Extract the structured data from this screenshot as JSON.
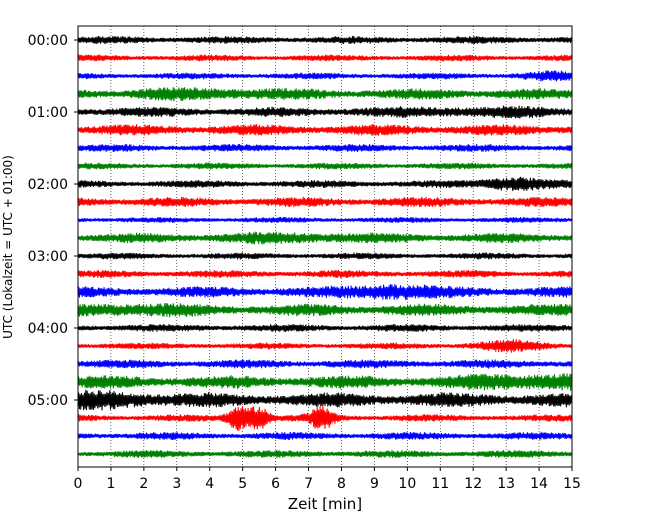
{
  "chart_data": {
    "type": "line",
    "chart_kind": "helicorder",
    "xlabel": "Zeit  [min]",
    "ylabel": "UTC (Lokalzeit = UTC + 01:00)",
    "xlim": [
      0,
      15
    ],
    "x_ticks": [
      "0",
      "1",
      "2",
      "3",
      "4",
      "5",
      "6",
      "7",
      "8",
      "9",
      "10",
      "11",
      "12",
      "13",
      "14",
      "15"
    ],
    "y_tick_labels": [
      "00:00",
      "01:00",
      "02:00",
      "03:00",
      "04:00",
      "05:00"
    ],
    "minutes_per_trace": 15,
    "vertical_grid": "dotted, every 1 min",
    "trace_color_cycle": [
      "#000000",
      "#ff0000",
      "#0000ff",
      "#008000"
    ],
    "traces": [
      {
        "row": 0,
        "start": "00:00",
        "amplitude": 0.3,
        "bursts": []
      },
      {
        "row": 1,
        "start": "00:15",
        "amplitude": 0.25,
        "bursts": []
      },
      {
        "row": 2,
        "start": "00:30",
        "amplitude": 0.25,
        "bursts": [
          {
            "t": 14.3,
            "w": 0.8,
            "a": 0.2
          }
        ]
      },
      {
        "row": 3,
        "start": "00:45",
        "amplitude": 0.45,
        "bursts": [
          {
            "t": 4.0,
            "w": 2.0,
            "a": 0.15
          }
        ]
      },
      {
        "row": 4,
        "start": "01:00",
        "amplitude": 0.4,
        "bursts": [
          {
            "t": 12.0,
            "w": 2.5,
            "a": 0.15
          }
        ]
      },
      {
        "row": 5,
        "start": "01:15",
        "amplitude": 0.45,
        "bursts": []
      },
      {
        "row": 6,
        "start": "01:30",
        "amplitude": 0.3,
        "bursts": []
      },
      {
        "row": 7,
        "start": "01:45",
        "amplitude": 0.25,
        "bursts": []
      },
      {
        "row": 8,
        "start": "02:00",
        "amplitude": 0.3,
        "bursts": [
          {
            "t": 13.2,
            "w": 1.0,
            "a": 0.4
          }
        ]
      },
      {
        "row": 9,
        "start": "02:15",
        "amplitude": 0.4,
        "bursts": []
      },
      {
        "row": 10,
        "start": "02:30",
        "amplitude": 0.22,
        "bursts": []
      },
      {
        "row": 11,
        "start": "02:45",
        "amplitude": 0.4,
        "bursts": [
          {
            "t": 6.5,
            "w": 2.0,
            "a": 0.15
          }
        ]
      },
      {
        "row": 12,
        "start": "03:00",
        "amplitude": 0.25,
        "bursts": []
      },
      {
        "row": 13,
        "start": "03:15",
        "amplitude": 0.3,
        "bursts": []
      },
      {
        "row": 14,
        "start": "03:30",
        "amplitude": 0.45,
        "bursts": [
          {
            "t": 9.5,
            "w": 1.2,
            "a": 0.4
          }
        ]
      },
      {
        "row": 15,
        "start": "03:45",
        "amplitude": 0.5,
        "bursts": [
          {
            "t": 1.5,
            "w": 1.5,
            "a": 0.2
          }
        ]
      },
      {
        "row": 16,
        "start": "04:00",
        "amplitude": 0.3,
        "bursts": []
      },
      {
        "row": 17,
        "start": "04:15",
        "amplitude": 0.25,
        "bursts": [
          {
            "t": 13.2,
            "w": 1.0,
            "a": 0.3
          }
        ]
      },
      {
        "row": 18,
        "start": "04:30",
        "amplitude": 0.35,
        "bursts": []
      },
      {
        "row": 19,
        "start": "04:45",
        "amplitude": 0.55,
        "bursts": [
          {
            "t": 14.0,
            "w": 2.0,
            "a": 0.3
          }
        ]
      },
      {
        "row": 20,
        "start": "05:00",
        "amplitude": 0.6,
        "bursts": [
          {
            "t": 1.0,
            "w": 1.5,
            "a": 0.3
          }
        ]
      },
      {
        "row": 21,
        "start": "05:15",
        "amplitude": 0.28,
        "bursts": [
          {
            "t": 4.9,
            "w": 0.35,
            "a": 0.9
          },
          {
            "t": 5.5,
            "w": 0.3,
            "a": 0.8
          },
          {
            "t": 7.4,
            "w": 0.35,
            "a": 0.8
          }
        ]
      },
      {
        "row": 22,
        "start": "05:30",
        "amplitude": 0.3,
        "bursts": []
      },
      {
        "row": 23,
        "start": "05:45",
        "amplitude": 0.3,
        "bursts": []
      }
    ]
  }
}
